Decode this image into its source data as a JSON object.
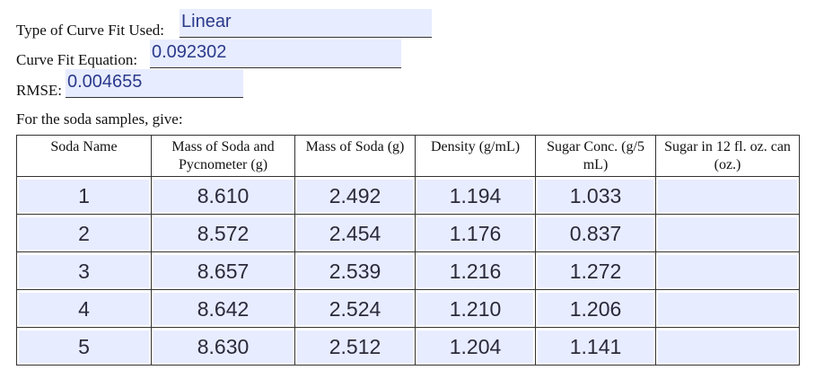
{
  "curve_fit_type": {
    "label": "Type of Curve Fit Used:",
    "value": "Linear"
  },
  "curve_fit_equation": {
    "label": "Curve Fit Equation:",
    "value": "0.092302"
  },
  "rmse": {
    "label": "RMSE:",
    "value": "0.004655"
  },
  "instructions": "For the soda samples, give:",
  "table": {
    "headers": [
      "Soda Name",
      "Mass of Soda and Pycnometer (g)",
      "Mass of Soda (g)",
      "Density (g/mL)",
      "Sugar Conc. (g/5 mL)",
      "Sugar in 12 fl. oz. can (oz.)"
    ],
    "rows": [
      [
        "1",
        "8.610",
        "2.492",
        "1.194",
        "1.033",
        ""
      ],
      [
        "2",
        "8.572",
        "2.454",
        "1.176",
        "0.837",
        ""
      ],
      [
        "3",
        "8.657",
        "2.539",
        "1.216",
        "1.272",
        ""
      ],
      [
        "4",
        "8.642",
        "2.524",
        "1.210",
        "1.206",
        ""
      ],
      [
        "5",
        "8.630",
        "2.512",
        "1.204",
        "1.141",
        ""
      ]
    ]
  }
}
